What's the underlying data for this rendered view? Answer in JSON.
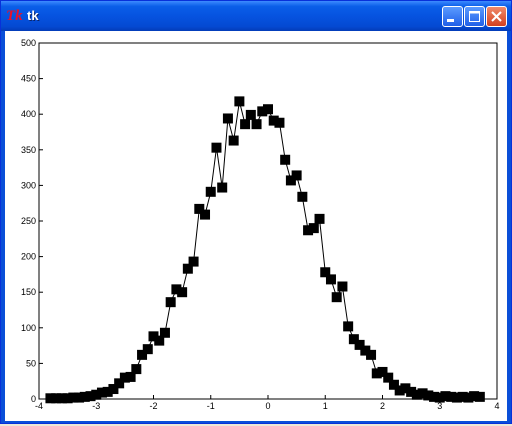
{
  "window": {
    "title": "tk",
    "app_icon": "Tk",
    "controls": [
      "minimize-icon",
      "maximize-icon",
      "close-icon"
    ]
  },
  "chart_data": {
    "type": "line",
    "markers": "square",
    "title": "",
    "xlabel": "",
    "ylabel": "",
    "xlim": [
      -4,
      4
    ],
    "ylim": [
      0,
      500
    ],
    "xticks": [
      -4,
      -3,
      -2,
      -1,
      0,
      1,
      2,
      3,
      4
    ],
    "yticks": [
      0,
      50,
      100,
      150,
      200,
      250,
      300,
      350,
      400,
      450,
      500
    ],
    "grid": false,
    "legend": "none",
    "series": [
      {
        "color": "#000000",
        "x": [
          -3.8,
          -3.7,
          -3.6,
          -3.5,
          -3.4,
          -3.3,
          -3.2,
          -3.1,
          -3.0,
          -2.9,
          -2.8,
          -2.7,
          -2.6,
          -2.5,
          -2.4,
          -2.3,
          -2.2,
          -2.1,
          -2.0,
          -1.9,
          -1.8,
          -1.7,
          -1.6,
          -1.5,
          -1.4,
          -1.3,
          -1.2,
          -1.1,
          -1.0,
          -0.9,
          -0.8,
          -0.7,
          -0.6,
          -0.5,
          -0.4,
          -0.3,
          -0.2,
          -0.1,
          0.0,
          0.1,
          0.2,
          0.3,
          0.4,
          0.5,
          0.6,
          0.7,
          0.8,
          0.9,
          1.0,
          1.1,
          1.2,
          1.3,
          1.4,
          1.5,
          1.6,
          1.7,
          1.8,
          1.9,
          2.0,
          2.1,
          2.2,
          2.3,
          2.4,
          2.5,
          2.6,
          2.7,
          2.8,
          2.9,
          3.0,
          3.1,
          3.2,
          3.3,
          3.4,
          3.5,
          3.6,
          3.7
        ],
        "y": [
          1,
          1,
          1,
          1,
          2,
          2,
          3,
          4,
          6,
          9,
          10,
          14,
          22,
          30,
          31,
          42,
          62,
          70,
          88,
          82,
          93,
          136,
          154,
          150,
          183,
          193,
          267,
          259,
          291,
          353,
          297,
          394,
          363,
          418,
          386,
          399,
          386,
          404,
          407,
          391,
          388,
          336,
          307,
          314,
          284,
          237,
          240,
          253,
          178,
          168,
          143,
          158,
          102,
          84,
          76,
          68,
          62,
          36,
          38,
          30,
          20,
          12,
          15,
          10,
          6,
          8,
          5,
          3,
          2,
          4,
          3,
          2,
          3,
          2,
          4,
          3
        ]
      }
    ]
  }
}
